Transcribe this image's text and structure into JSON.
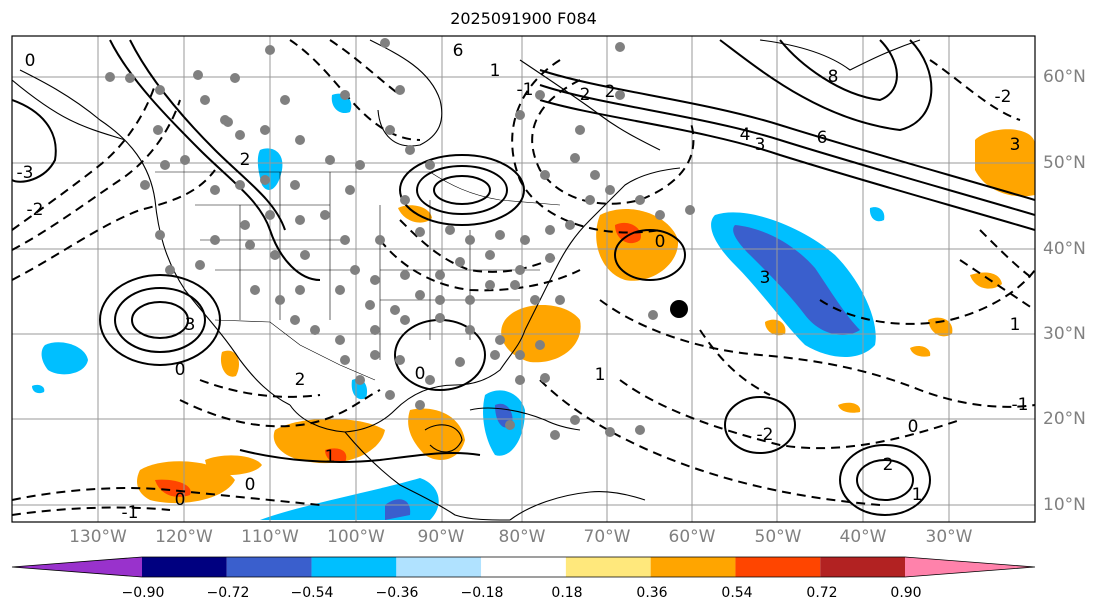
{
  "title": "2025091900 F084",
  "longitude_labels": [
    "130°W",
    "120°W",
    "110°W",
    "100°W",
    "90°W",
    "80°W",
    "70°W",
    "60°W",
    "50°W",
    "40°W",
    "30°W"
  ],
  "latitude_labels": [
    "60°N",
    "50°N",
    "40°N",
    "30°N",
    "20°N",
    "10°N"
  ],
  "colorbar": {
    "tick_labels": [
      "−0.90",
      "−0.72",
      "−0.54",
      "−0.36",
      "−0.18",
      "0.18",
      "0.36",
      "0.54",
      "0.72",
      "0.90"
    ],
    "colors": [
      "#9932CC",
      "#000080",
      "#3A5FCD",
      "#00BFFF",
      "#B0E2FF",
      "#FFFFFF",
      "#FFE87C",
      "#FFA500",
      "#FF4500",
      "#B22222",
      "#FF82AB"
    ]
  },
  "contour_labels": [
    "0",
    "6",
    "4",
    "3",
    "2",
    "1",
    "-1",
    "0",
    "3",
    "6",
    "8",
    "-2",
    "3",
    "2",
    "1",
    "0",
    "-1",
    "1",
    "-2",
    "0",
    "2",
    "1",
    "0",
    "2",
    "0",
    "3",
    "-2",
    "-3",
    "0",
    "-1",
    "2",
    "1"
  ],
  "colors": {
    "positive": "#FFA500",
    "positive_strong": "#FF4500",
    "negative": "#00BFFF",
    "negative_strong": "#3A5FCD",
    "dots": "#808080",
    "storm": "#000000"
  }
}
